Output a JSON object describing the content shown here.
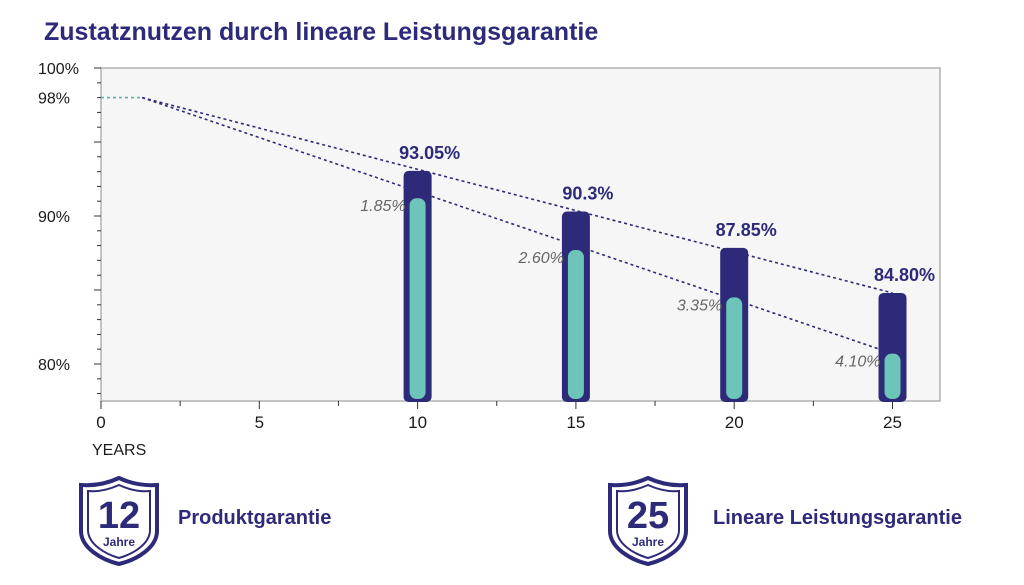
{
  "header": {
    "title": "Zustatznutzen durch lineare Leistungsgarantie"
  },
  "chart_data": {
    "type": "bar",
    "xlabel": "YEARS",
    "ylabel": "",
    "xlim": [
      0,
      26.5
    ],
    "ylim": [
      77.5,
      100
    ],
    "x_ticks": [
      0,
      5,
      10,
      15,
      20,
      25
    ],
    "y_tick_labels": [
      {
        "value": 100,
        "label": "100%"
      },
      {
        "value": 98,
        "label": "98%"
      },
      {
        "value": 90,
        "label": "90%"
      },
      {
        "value": 80,
        "label": "80%"
      }
    ],
    "grid": false,
    "series": [
      {
        "x": [
          10,
          15,
          20,
          25
        ],
        "values": [
          93.05,
          90.3,
          87.85,
          84.8
        ],
        "labels": [
          "93.05%",
          "90.3%",
          "87.85%",
          "84.80%"
        ],
        "color": "#2d2a7a"
      },
      {
        "x": [
          10,
          15,
          20,
          25
        ],
        "values": [
          91.2,
          87.7,
          84.5,
          80.7
        ],
        "labels": [
          "1.85%",
          "2.60%",
          "3.35%",
          "4.10%"
        ],
        "color": "#6cc5b8"
      }
    ],
    "trend_lines": [
      {
        "color": "#2d2a7a",
        "points": [
          [
            1.3,
            98
          ],
          [
            25,
            84.8
          ]
        ]
      },
      {
        "color": "#2d2a7a",
        "points": [
          [
            1.3,
            98
          ],
          [
            25,
            80.7
          ]
        ]
      },
      {
        "color": "#5bb0ac",
        "points": [
          [
            0,
            98
          ],
          [
            1.3,
            98
          ]
        ]
      }
    ]
  },
  "badges": [
    {
      "number": "12",
      "unit": "Jahre",
      "label": "Produktgarantie"
    },
    {
      "number": "25",
      "unit": "Jahre",
      "label": "Lineare Leistungsgarantie"
    }
  ]
}
